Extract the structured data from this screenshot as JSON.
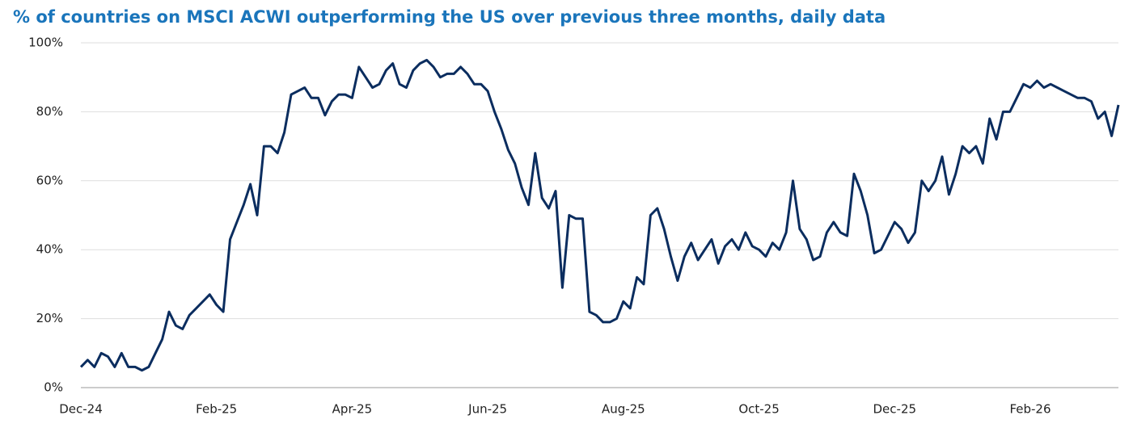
{
  "chart_data": {
    "type": "line",
    "title": "% of countries on MSCI ACWI outperforming the US over previous three months, daily data",
    "categories": [
      "Dec-24",
      null,
      null,
      null,
      null,
      null,
      null,
      null,
      null,
      null,
      null,
      null,
      null,
      null,
      null,
      null,
      null,
      null,
      null,
      null,
      "Feb-25",
      null,
      null,
      null,
      null,
      null,
      null,
      null,
      null,
      null,
      null,
      null,
      null,
      null,
      null,
      null,
      null,
      null,
      null,
      null,
      "Apr-25",
      null,
      null,
      null,
      null,
      null,
      null,
      null,
      null,
      null,
      null,
      null,
      null,
      null,
      null,
      null,
      null,
      null,
      null,
      null,
      "Jun-25",
      null,
      null,
      null,
      null,
      null,
      null,
      null,
      null,
      null,
      null,
      null,
      null,
      null,
      null,
      null,
      null,
      null,
      null,
      null,
      "Aug-25",
      null,
      null,
      null,
      null,
      null,
      null,
      null,
      null,
      null,
      null,
      null,
      null,
      null,
      null,
      null,
      null,
      null,
      null,
      null,
      "Oct-25",
      null,
      null,
      null,
      null,
      null,
      null,
      null,
      null,
      null,
      null,
      null,
      null,
      null,
      null,
      null,
      null,
      null,
      null,
      null,
      "Dec-25",
      null,
      null,
      null,
      null,
      null,
      null,
      null,
      null,
      null,
      null,
      null,
      null,
      null,
      null,
      null,
      null,
      null,
      null,
      null,
      "Feb-26",
      null,
      null,
      null,
      null,
      null,
      null,
      null,
      null,
      null,
      null,
      null,
      null,
      null
    ],
    "values": [
      6,
      8,
      6,
      10,
      9,
      6,
      10,
      6,
      6,
      5,
      6,
      10,
      14,
      22,
      18,
      17,
      21,
      23,
      25,
      27,
      24,
      22,
      43,
      48,
      53,
      59,
      50,
      70,
      70,
      68,
      74,
      85,
      86,
      87,
      84,
      84,
      79,
      83,
      85,
      85,
      84,
      93,
      90,
      87,
      88,
      92,
      94,
      88,
      87,
      92,
      94,
      95,
      93,
      90,
      91,
      91,
      93,
      91,
      88,
      88,
      86,
      80,
      75,
      69,
      65,
      58,
      53,
      68,
      55,
      52,
      57,
      29,
      50,
      49,
      49,
      22,
      21,
      19,
      19,
      20,
      25,
      23,
      32,
      30,
      50,
      52,
      46,
      38,
      31,
      38,
      42,
      37,
      40,
      43,
      36,
      41,
      43,
      40,
      45,
      41,
      40,
      38,
      42,
      40,
      45,
      60,
      46,
      43,
      37,
      38,
      45,
      48,
      45,
      44,
      62,
      57,
      50,
      39,
      40,
      44,
      48,
      46,
      42,
      45,
      60,
      57,
      60,
      67,
      56,
      62,
      70,
      68,
      70,
      65,
      78,
      72,
      80,
      80,
      84,
      88,
      87,
      89,
      87,
      88,
      87,
      86,
      85,
      84,
      84,
      83,
      78,
      80,
      73,
      82
    ],
    "color": "#0b2d5f",
    "ylim": [
      0,
      100
    ],
    "yticks": [
      {
        "value": 0,
        "label": "0%"
      },
      {
        "value": 20,
        "label": "20%"
      },
      {
        "value": 40,
        "label": "40%"
      },
      {
        "value": 60,
        "label": "60%"
      },
      {
        "value": 80,
        "label": "80%"
      },
      {
        "value": 100,
        "label": "100%"
      }
    ],
    "grid": true
  }
}
